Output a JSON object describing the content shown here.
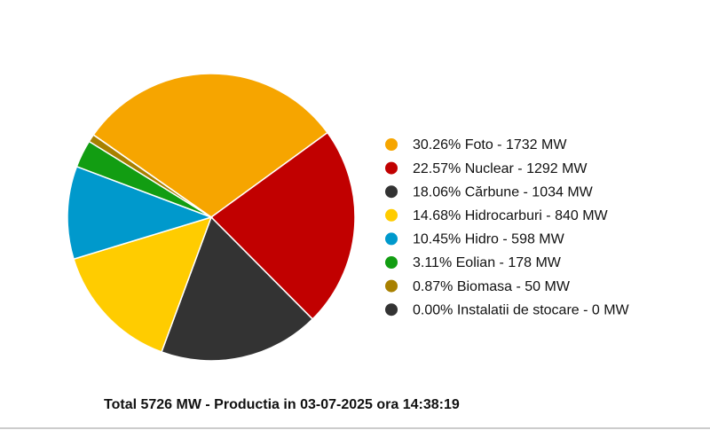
{
  "chart_data": {
    "type": "pie",
    "categories": [
      "30.26% Foto - 1732 MW",
      "22.57% Nuclear - 1292 MW",
      "18.06% Cărbune - 1034 MW",
      "14.68% Hidrocarburi - 840 MW",
      "10.45% Hidro - 598 MW",
      "3.11% Eolian - 178 MW",
      "0.87% Biomasa - 50 MW",
      "0.00% Instalatii de stocare - 0 MW"
    ],
    "values": [
      1732,
      1292,
      1034,
      840,
      598,
      178,
      50,
      0
    ],
    "colors": [
      "#f6a500",
      "#c10000",
      "#333333",
      "#ffcc00",
      "#0099cc",
      "#129d12",
      "#a88000",
      "#333333"
    ],
    "footer": "Total 5726 MW - Productia in 03-07-2025 ora 14:38:19"
  }
}
